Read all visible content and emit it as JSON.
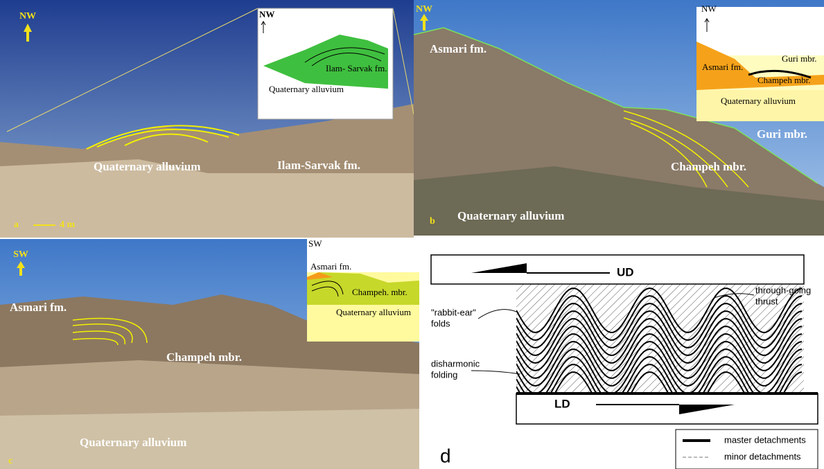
{
  "panels": [
    {
      "letter": "a",
      "direction": "NW",
      "scale": "4 m",
      "photo_labels": [
        "Quaternary alluvium",
        "Ilam-Sarvak fm."
      ],
      "inset": {
        "direction": "NW",
        "labels": [
          "Ilam- Sarvak fm.",
          "Quaternary alluvium"
        ]
      }
    },
    {
      "letter": "b",
      "direction": "NW",
      "photo_labels": [
        "Asmari fm.",
        "Guri mbr.",
        "Champeh mbr.",
        "Quaternary alluvium"
      ],
      "inset": {
        "direction": "NW",
        "labels": [
          "Guri mbr.",
          "Asmari fm.",
          "Champeh mbr.",
          "Quaternary alluvium"
        ]
      }
    },
    {
      "letter": "c",
      "direction": "SW",
      "photo_labels": [
        "Asmari fm.",
        "Champeh mbr.",
        "Quaternary alluvium"
      ],
      "inset": {
        "direction": "SW",
        "labels": [
          "Asmari fm.",
          "Champeh. mbr.",
          "Quaternary alluvium"
        ]
      }
    }
  ],
  "diagram": {
    "letter": "d",
    "upper": "UD",
    "lower": "LD",
    "annotations": [
      "through-going",
      "thrust",
      "\"rabbit-ear\"",
      "folds",
      "disharmonic",
      "folding"
    ],
    "legend": [
      "master detachments",
      "minor detachments"
    ]
  }
}
